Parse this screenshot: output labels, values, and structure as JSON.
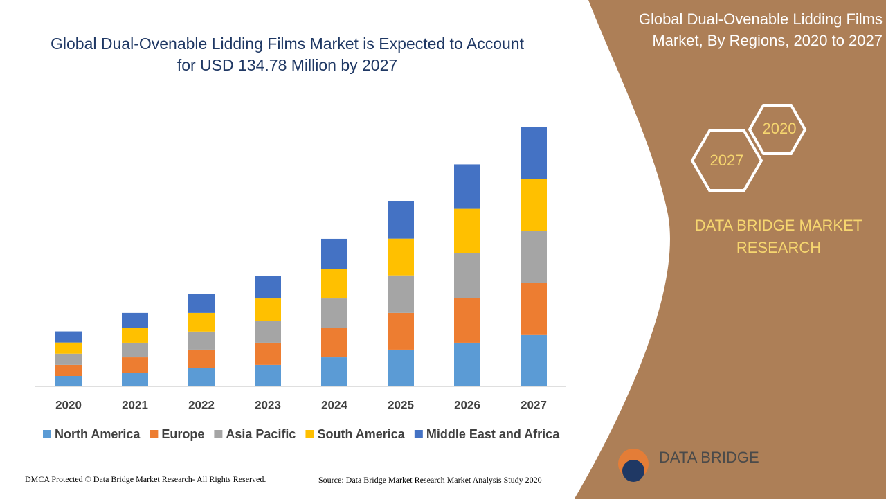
{
  "chart_data": {
    "type": "stacked-bar",
    "title": "Global Dual-Ovenable Lidding Films Market is Expected to Account for USD 134.78 Million by 2027",
    "categories": [
      "2020",
      "2021",
      "2022",
      "2023",
      "2024",
      "2025",
      "2026",
      "2027"
    ],
    "series": [
      {
        "name": "North America",
        "color": "#5b9bd5",
        "values": [
          5.4,
          7.2,
          9.4,
          11.2,
          15.1,
          19.1,
          22.7,
          26.7
        ]
      },
      {
        "name": "Europe",
        "color": "#ed7d31",
        "values": [
          5.8,
          7.9,
          9.7,
          11.5,
          15.5,
          19.1,
          23.1,
          27.0
        ]
      },
      {
        "name": "Asia Pacific",
        "color": "#a5a5a5",
        "values": [
          5.8,
          7.6,
          9.4,
          11.5,
          15.1,
          19.5,
          23.4,
          27.0
        ]
      },
      {
        "name": "South America",
        "color": "#ffc000",
        "values": [
          5.8,
          7.9,
          9.7,
          11.5,
          15.5,
          19.1,
          23.1,
          27.0
        ]
      },
      {
        "name": "Middle East and Africa",
        "color": "#4472c4",
        "values": [
          5.8,
          7.6,
          9.7,
          11.9,
          15.5,
          19.5,
          23.1,
          27.0
        ]
      }
    ],
    "ylim": [
      0,
      135
    ],
    "legend": "bottom"
  },
  "panel": {
    "title": "Global Dual-Ovenable Lidding Films Market, By Regions, 2020 to 2027",
    "hex_start": "2020",
    "hex_end": "2027",
    "brand": "DATA BRIDGE MARKET RESEARCH",
    "logo": "DATA BRIDGE"
  },
  "footer": {
    "copyright": "DMCA Protected © Data Bridge Market Research- All Rights Reserved.",
    "source": "Source: Data Bridge Market Research Market Analysis Study 2020"
  }
}
